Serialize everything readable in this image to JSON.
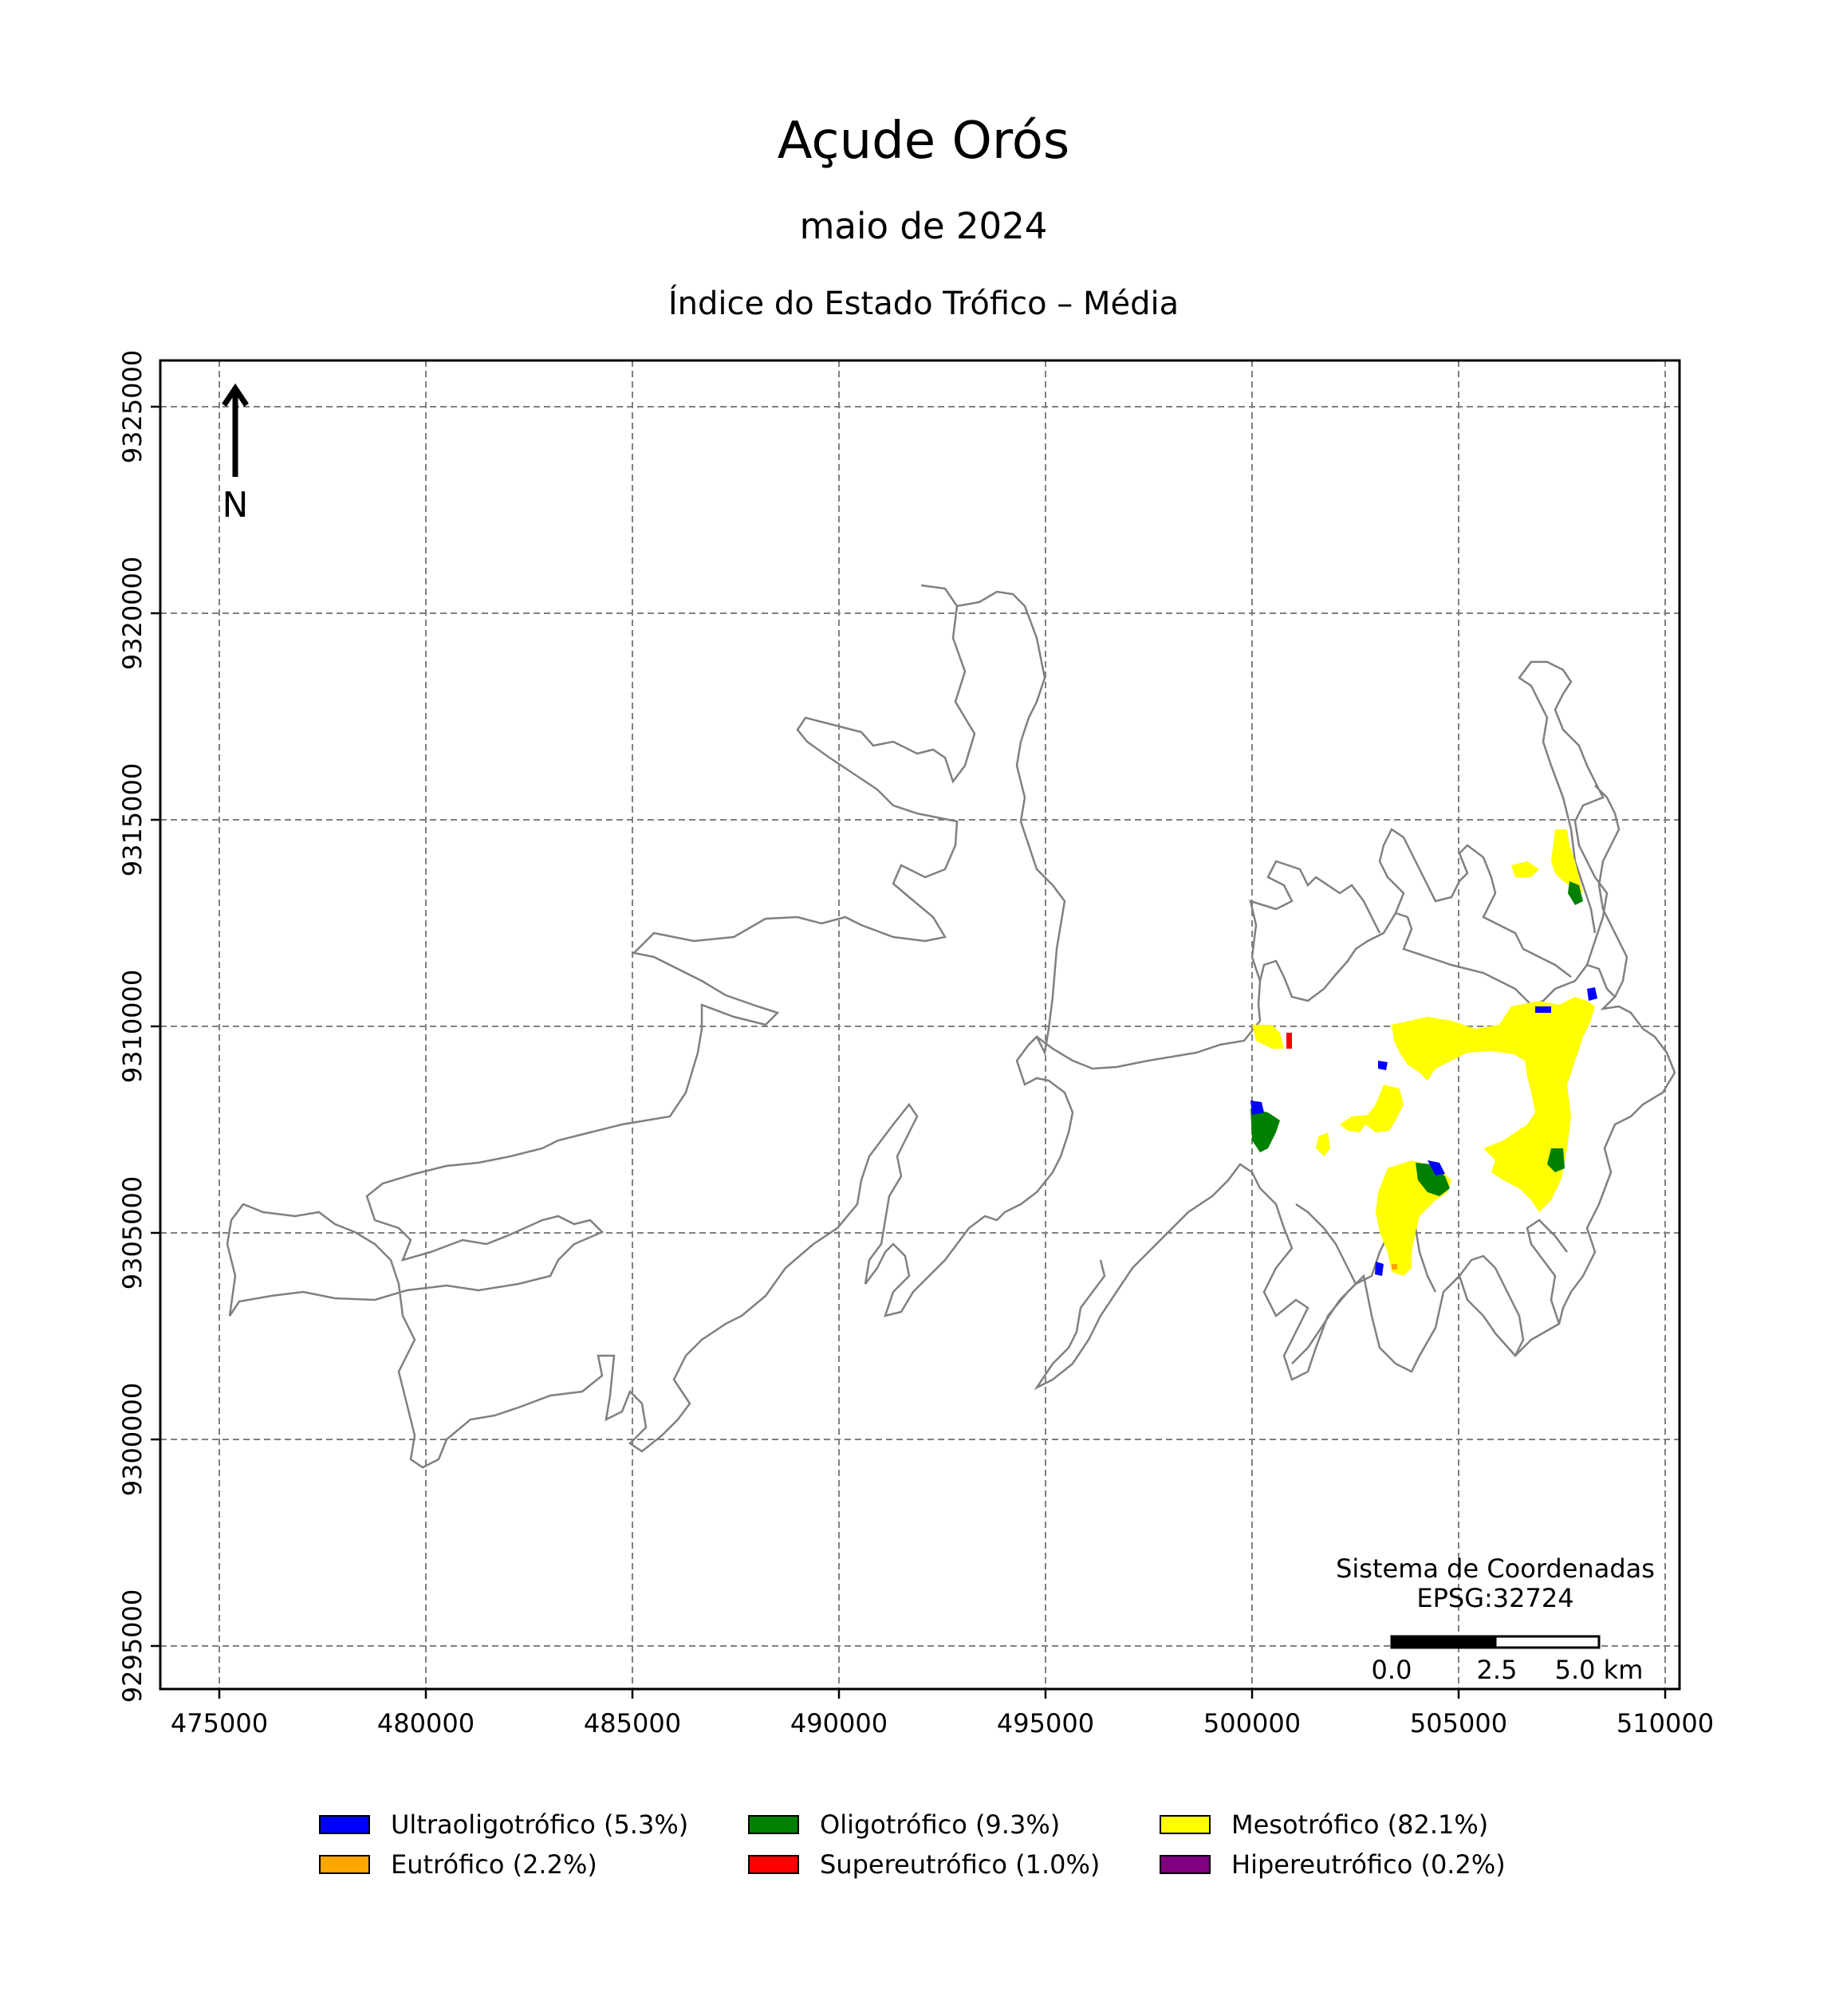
{
  "title": "Açude Orós",
  "subtitle": "maio de 2024",
  "map_title": "Índice do Estado Trófico – Média",
  "north_label": "N",
  "crs": {
    "line1": "Sistema de Coordenadas",
    "line2": "EPSG:32724"
  },
  "scale_bar": {
    "labels": [
      "0.0",
      "2.5",
      "5.0 km"
    ]
  },
  "axes": {
    "x_ticks": [
      "475000",
      "480000",
      "485000",
      "490000",
      "495000",
      "500000",
      "505000",
      "510000"
    ],
    "y_ticks": [
      "9295000",
      "9300000",
      "9305000",
      "9310000",
      "9315000",
      "9320000",
      "9325000"
    ],
    "grid": true
  },
  "colors": {
    "outline": "#808080",
    "ultraoligotrofico": "#0000ff",
    "oligotrofico": "#008000",
    "mesotrofico": "#ffff00",
    "eutrofico": "#ffa500",
    "supereutrofico": "#ff0000",
    "hipereutrofico": "#800080"
  },
  "legend": [
    {
      "label": "Ultraoligotrófico (5.3%)",
      "color": "#0000ff"
    },
    {
      "label": "Oligotrófico (9.3%)",
      "color": "#008000"
    },
    {
      "label": "Mesotrófico (82.1%)",
      "color": "#ffff00"
    },
    {
      "label": "Eutrófico (2.2%)",
      "color": "#ffa500"
    },
    {
      "label": "Supereutrófico (1.0%)",
      "color": "#ff0000"
    },
    {
      "label": "Hipereutrófico (0.2%)",
      "color": "#800080"
    }
  ]
}
